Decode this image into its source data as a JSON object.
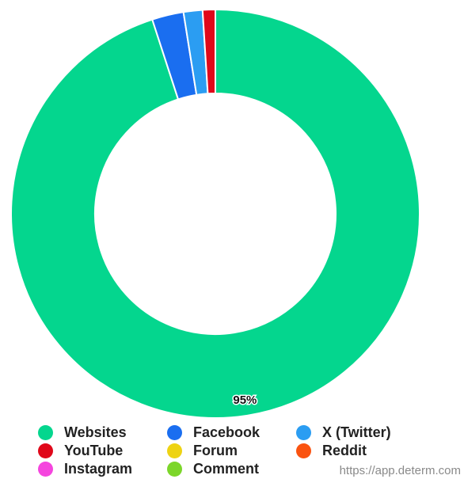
{
  "chart_data": {
    "type": "pie",
    "variant": "donut",
    "categories": [
      "Websites",
      "Facebook",
      "X (Twitter)",
      "YouTube",
      "Forum",
      "Reddit",
      "Instagram",
      "Comment"
    ],
    "values": [
      95,
      2.5,
      1.5,
      1,
      0,
      0,
      0,
      0
    ],
    "colors": [
      "#04d68e",
      "#1a6ef0",
      "#2b9df2",
      "#e0081a",
      "#eed313",
      "#fa5310",
      "#f545de",
      "#7cd62a"
    ],
    "data_labels": [
      "95%",
      "",
      "",
      "",
      "",
      "",
      "",
      ""
    ],
    "legend_position": "bottom"
  },
  "source_text": "https://app.determ.com"
}
